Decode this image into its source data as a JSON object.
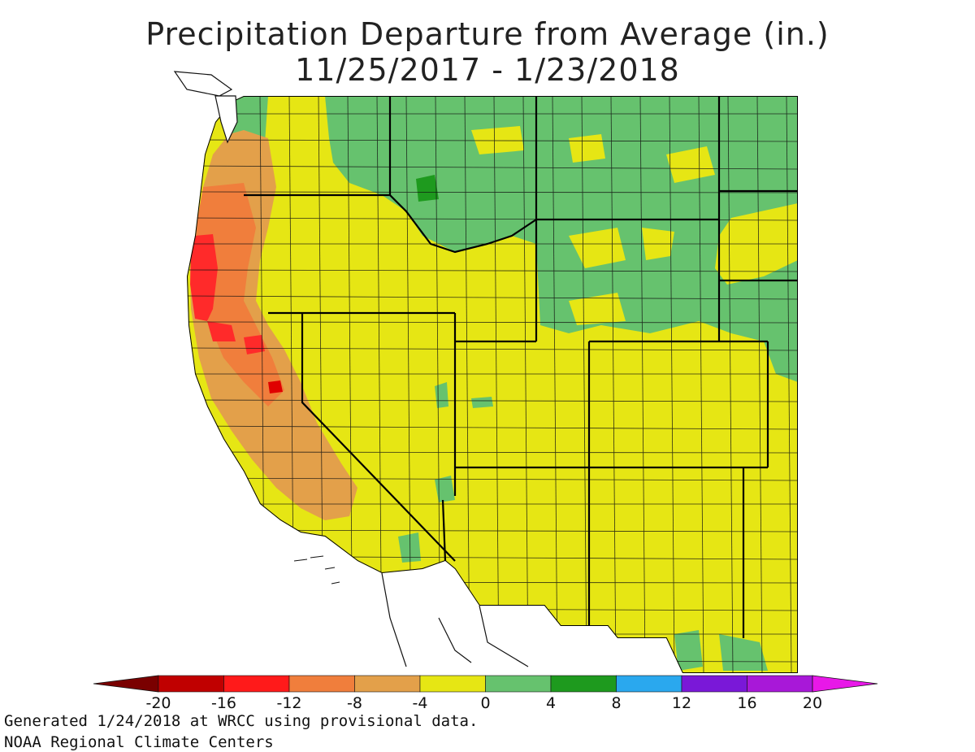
{
  "title": "Precipitation Departure from Average (in.)",
  "date_range": "11/25/2017 - 1/23/2018",
  "legend": {
    "ticks": [
      "-20",
      "-16",
      "-12",
      "-8",
      "-4",
      "0",
      "4",
      "8",
      "12",
      "16",
      "20"
    ],
    "colors": [
      "#8b0000",
      "#e00000",
      "#ff2a2a",
      "#f07e3c",
      "#e3a04a",
      "#e3e34a",
      "#e6e614",
      "#66c26e",
      "#1e9a1e",
      "#2aa8ee",
      "#1e5ef0",
      "#7a18d8",
      "#a818d8",
      "#e818e8"
    ]
  },
  "map_colors": {
    "yellow": "#e6e614",
    "green": "#66c26e",
    "dark_green": "#1e9a1e",
    "orange_light": "#e3a04a",
    "orange": "#f07e3c",
    "red": "#ff2a2a",
    "boundary": "#111111"
  },
  "footer": {
    "line1": "Generated 1/24/2018 at WRCC using provisional data.",
    "line2": "NOAA Regional Climate Centers"
  }
}
